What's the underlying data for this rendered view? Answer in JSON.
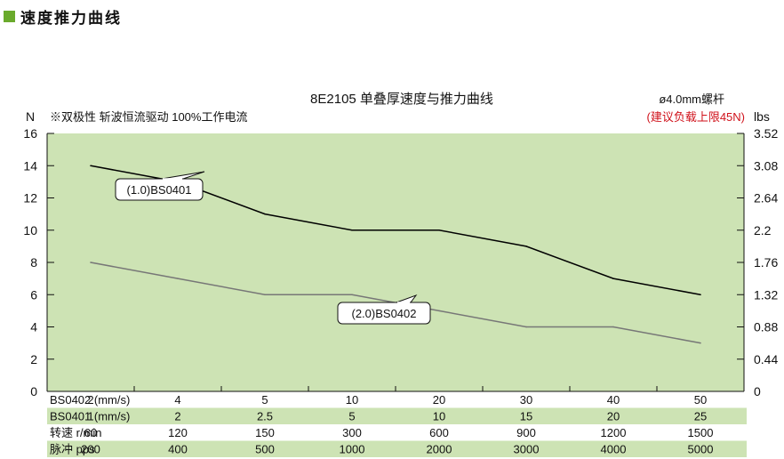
{
  "header": {
    "title": "速度推力曲线"
  },
  "chart_data": {
    "type": "line",
    "title": "8E2105 单叠厚速度与推力曲线",
    "note_left": "※双极性 斩波恒流驱动 100%工作电流",
    "note_right": "ø4.0mm螺杆",
    "limit_note": "(建议负载上限45N)",
    "ylabel": "N",
    "y2label": "lbs",
    "ylim": [
      0,
      16
    ],
    "y_ticks": [
      "0",
      "2",
      "4",
      "6",
      "8",
      "10",
      "12",
      "14",
      "16"
    ],
    "y2lim": [
      0,
      3.52
    ],
    "y2_ticks": [
      "0",
      "0.44",
      "0.88",
      "1.32",
      "1.76",
      "2.2",
      "2.64",
      "3.08",
      "3.52"
    ],
    "grid": false,
    "background": "#cde3b4",
    "x_categories_count": 8,
    "series": [
      {
        "name": "(1.0)BS0401",
        "color": "#000000",
        "values": [
          14,
          13,
          11,
          10,
          10,
          9,
          7,
          6
        ]
      },
      {
        "name": "(2.0)BS0402",
        "color": "#777777",
        "values": [
          8,
          7,
          6,
          6,
          5,
          4,
          4,
          3
        ]
      }
    ],
    "table": [
      {
        "label": "BS0402 (mm/s)",
        "values": [
          "2",
          "4",
          "5",
          "10",
          "20",
          "30",
          "40",
          "50"
        ]
      },
      {
        "label": "BS0401 (mm/s)",
        "values": [
          "1",
          "2",
          "2.5",
          "5",
          "10",
          "15",
          "20",
          "25"
        ]
      },
      {
        "label": "转速 r/min",
        "values": [
          "60",
          "120",
          "150",
          "300",
          "600",
          "900",
          "1200",
          "1500"
        ]
      },
      {
        "label": "脉冲 pps",
        "values": [
          "200",
          "400",
          "500",
          "1000",
          "2000",
          "3000",
          "4000",
          "5000"
        ]
      }
    ]
  }
}
